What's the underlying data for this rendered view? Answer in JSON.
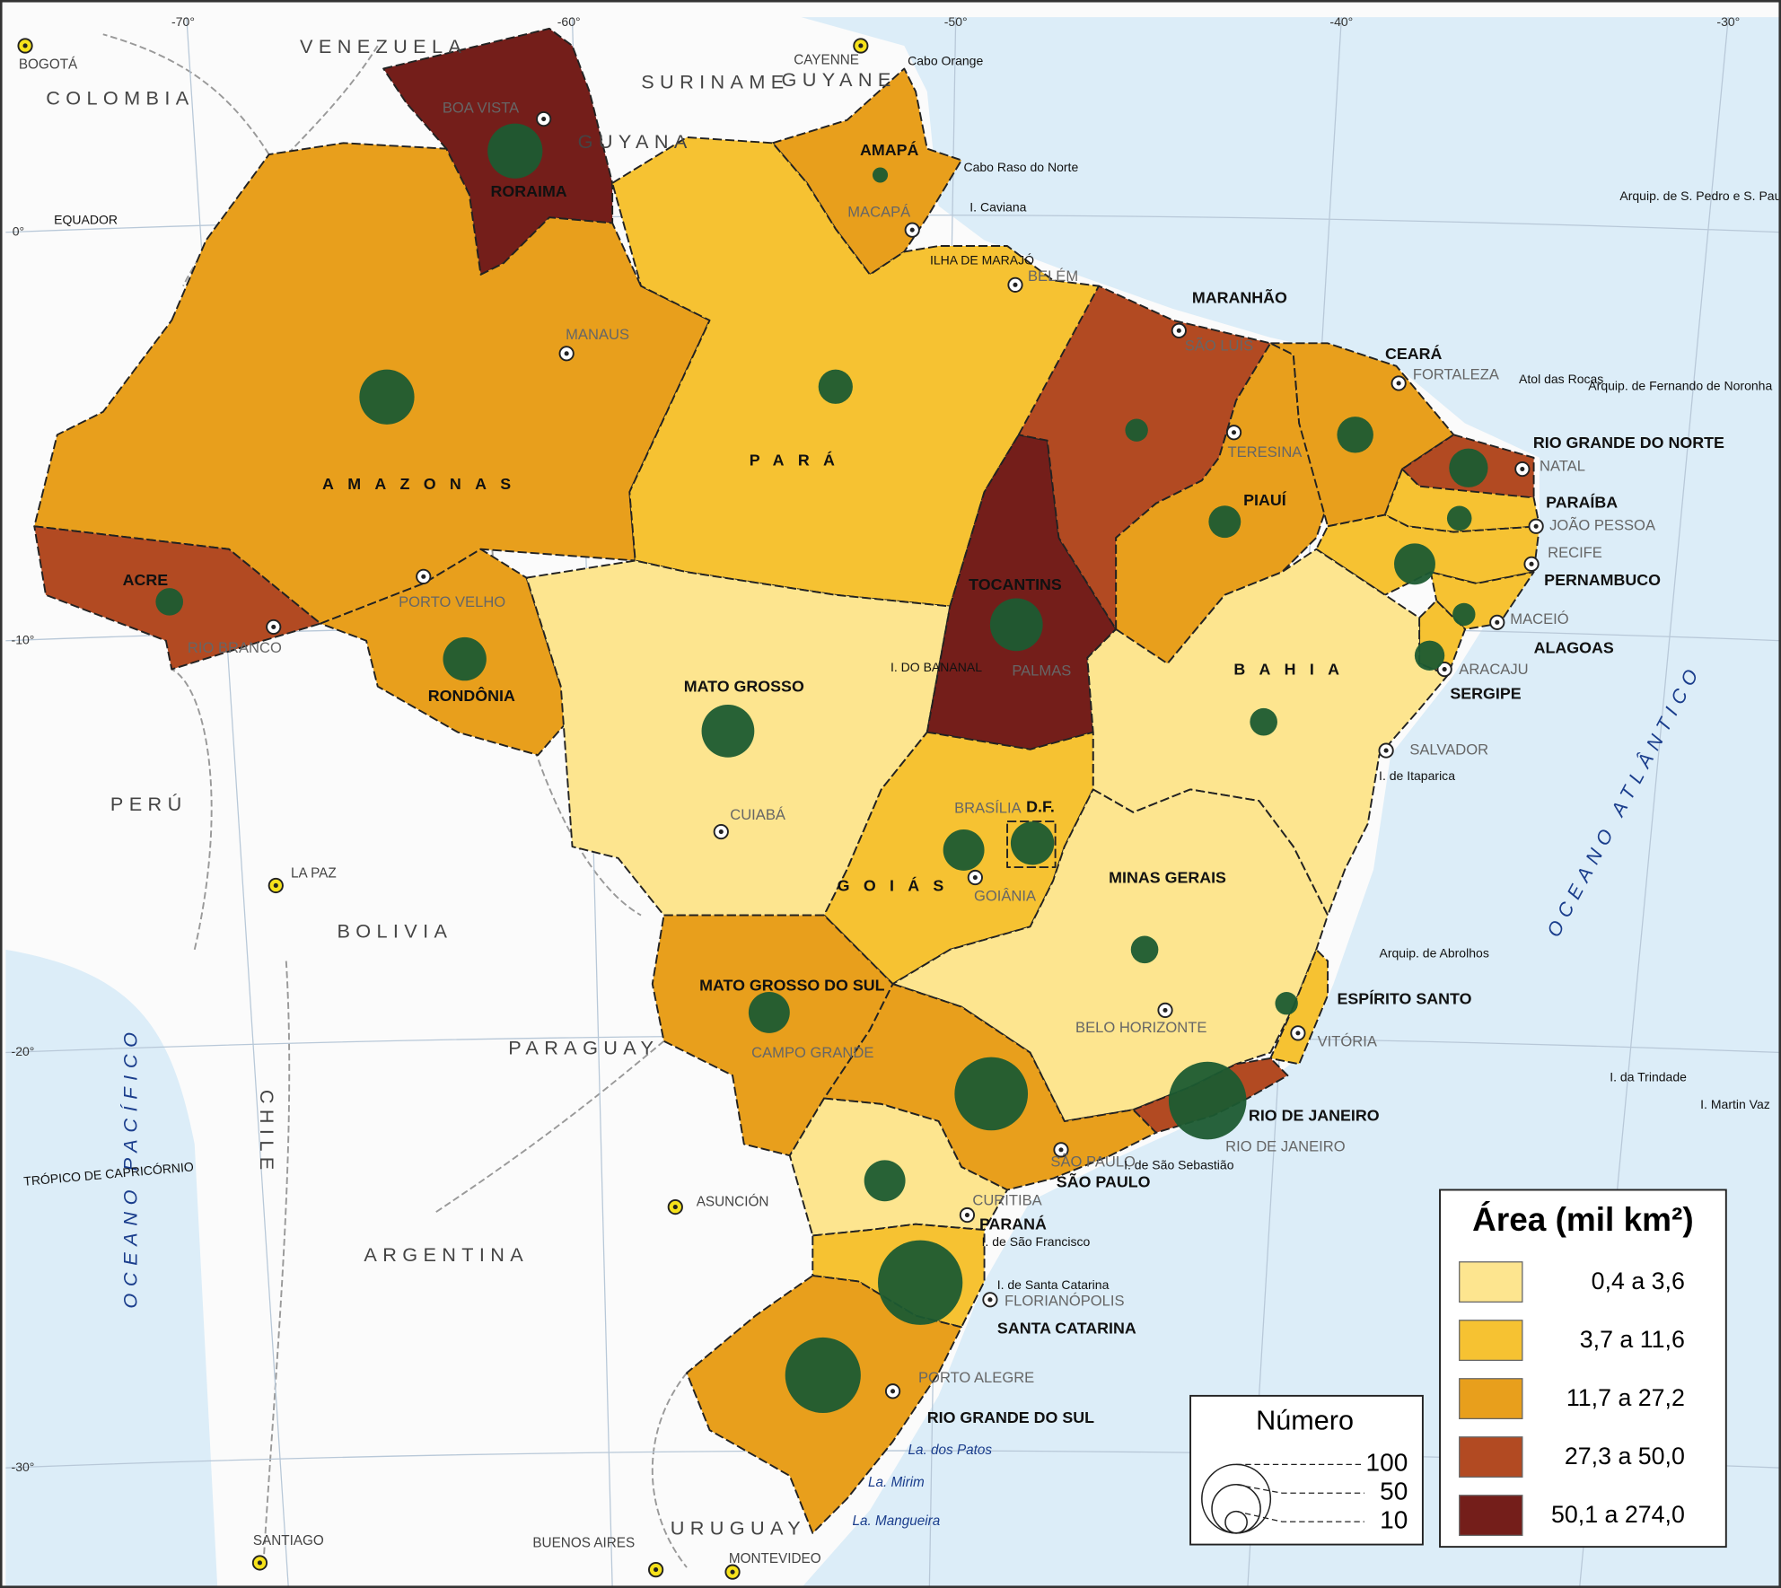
{
  "legend_area": {
    "title": "Área (mil km²)",
    "classes": [
      {
        "label": "0,4 a 3,6",
        "color": "#fde58f"
      },
      {
        "label": "3,7 a 11,6",
        "color": "#f6c232"
      },
      {
        "label": "11,7 a 27,2",
        "color": "#e89f1c"
      },
      {
        "label": "27,3 a 50,0",
        "color": "#b24a22"
      },
      {
        "label": "50,1 a 274,0",
        "color": "#741e1a"
      }
    ]
  },
  "legend_number": {
    "title": "Número",
    "values": [
      100,
      50,
      10
    ],
    "color": "#1c5b32"
  },
  "states": [
    {
      "name": "RORAIMA",
      "color": "#741e1a",
      "count": 64
    },
    {
      "name": "AMAPÁ",
      "color": "#e89f1c",
      "count": 5
    },
    {
      "name": "AMAZONAS",
      "color": "#e89f1c",
      "count": 64
    },
    {
      "name": "PARÁ",
      "color": "#f6c232",
      "count": 25
    },
    {
      "name": "ACRE",
      "color": "#b24a22",
      "count": 16
    },
    {
      "name": "RONDÔNIA",
      "color": "#e89f1c",
      "count": 40
    },
    {
      "name": "MATO GROSSO",
      "color": "#fde58f",
      "count": 59
    },
    {
      "name": "TOCANTINS",
      "color": "#741e1a",
      "count": 59
    },
    {
      "name": "MARANHÃO",
      "color": "#b24a22",
      "count": 11
    },
    {
      "name": "PIAUÍ",
      "color": "#e89f1c",
      "count": 22
    },
    {
      "name": "CEARÁ",
      "color": "#e89f1c",
      "count": 28
    },
    {
      "name": "RIO GRANDE DO NORTE",
      "color": "#b24a22",
      "count": 32
    },
    {
      "name": "PARAÍBA",
      "color": "#f6c232",
      "count": 13
    },
    {
      "name": "PERNAMBUCO",
      "color": "#f6c232",
      "count": 36
    },
    {
      "name": "ALAGOAS",
      "color": "#f6c232",
      "count": 11
    },
    {
      "name": "SERGIPE",
      "color": "#f6c232",
      "count": 19
    },
    {
      "name": "BAHIA",
      "color": "#fde58f",
      "count": 16
    },
    {
      "name": "GOIÁS",
      "color": "#f6c232",
      "count": 36
    },
    {
      "name": "D.F.",
      "color": "#f6c232",
      "count": 40
    },
    {
      "name": "MINAS GERAIS",
      "color": "#fde58f",
      "count": 16
    },
    {
      "name": "ESPÍRITO SANTO",
      "color": "#f6c232",
      "count": 11
    },
    {
      "name": "RIO DE JANEIRO",
      "color": "#b24a22",
      "count": 128
    },
    {
      "name": "SÃO PAULO",
      "color": "#e89f1c",
      "count": 114
    },
    {
      "name": "MATO GROSSO DO SUL",
      "color": "#e89f1c",
      "count": 36
    },
    {
      "name": "PARANÁ",
      "color": "#fde58f",
      "count": 36
    },
    {
      "name": "SANTA CATARINA",
      "color": "#f6c232",
      "count": 152
    },
    {
      "name": "RIO GRANDE DO SUL",
      "color": "#e89f1c",
      "count": 121
    }
  ],
  "places": [
    "VENEZUELA",
    "COLOMBIA",
    "SURINAME",
    "GUYANE",
    "GUYANA",
    "PERÚ",
    "BOLIVIA",
    "PARAGUAY",
    "ARGENTINA",
    "CHILE",
    "URUGUAY",
    "OCEANO PACÍFICO",
    "OCEANO ATLÂNTICO",
    "BOGOTÁ",
    "CAYENNE",
    "LA PAZ",
    "ASUNCIÓN",
    "SANTIAGO",
    "BUENOS AIRES",
    "MONTEVIDEO",
    "BOA VISTA",
    "MACAPÁ",
    "BELÉM",
    "MANAUS",
    "SÃO LUÍS",
    "TERESINA",
    "FORTALEZA",
    "NATAL",
    "JOÃO PESSOA",
    "RECIFE",
    "MACEIÓ",
    "ARACAJU",
    "SALVADOR",
    "PORTO VELHO",
    "RIO BRANCO",
    "PALMAS",
    "CUIABÁ",
    "BRASÍLIA",
    "GOIÂNIA",
    "BELO HORIZONTE",
    "VITÓRIA",
    "CAMPO GRANDE",
    "RIO DE JANEIRO",
    "SÃO PAULO",
    "CURITIBA",
    "FLORIANÓPOLIS",
    "PORTO ALEGRE",
    "Cabo Orange",
    "Cabo Raso do Norte",
    "I. Caviana",
    "ILHA DE MARAJÓ",
    "Atol das Rocas",
    "Arquip. de Fernando de Noronha",
    "Arquip. de S. Pedro e S. Paulo",
    "I. de Itaparica",
    "Arquip. de Abrolhos",
    "I. da Trindade",
    "I. Martin Vaz",
    "I. de São Sebastião",
    "I. de São Francisco",
    "I. de Santa Catarina",
    "La. dos Patos",
    "La. Mirim",
    "La. Mangueira",
    "I. DO BANANAL",
    "EQUADOR",
    "TRÓPICO DE CAPRICÓRNIO"
  ],
  "graticule": [
    "-70°",
    "-60°",
    "-50°",
    "-40°",
    "-30°",
    "0°",
    "-10°",
    "-20°",
    "-30°"
  ]
}
